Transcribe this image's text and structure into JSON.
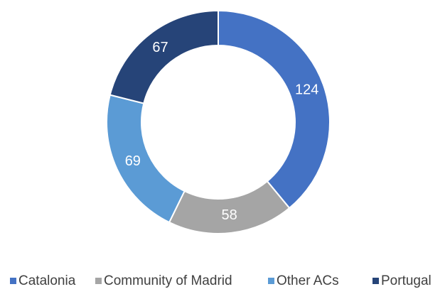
{
  "chart_data": {
    "type": "donut",
    "categories": [
      "Catalonia",
      "Community of Madrid",
      "Other ACs",
      "Portugal"
    ],
    "values": [
      124,
      58,
      69,
      67
    ],
    "colors": [
      "#4472c4",
      "#a5a5a5",
      "#5b9bd5",
      "#264478"
    ],
    "legend": "bottom"
  }
}
